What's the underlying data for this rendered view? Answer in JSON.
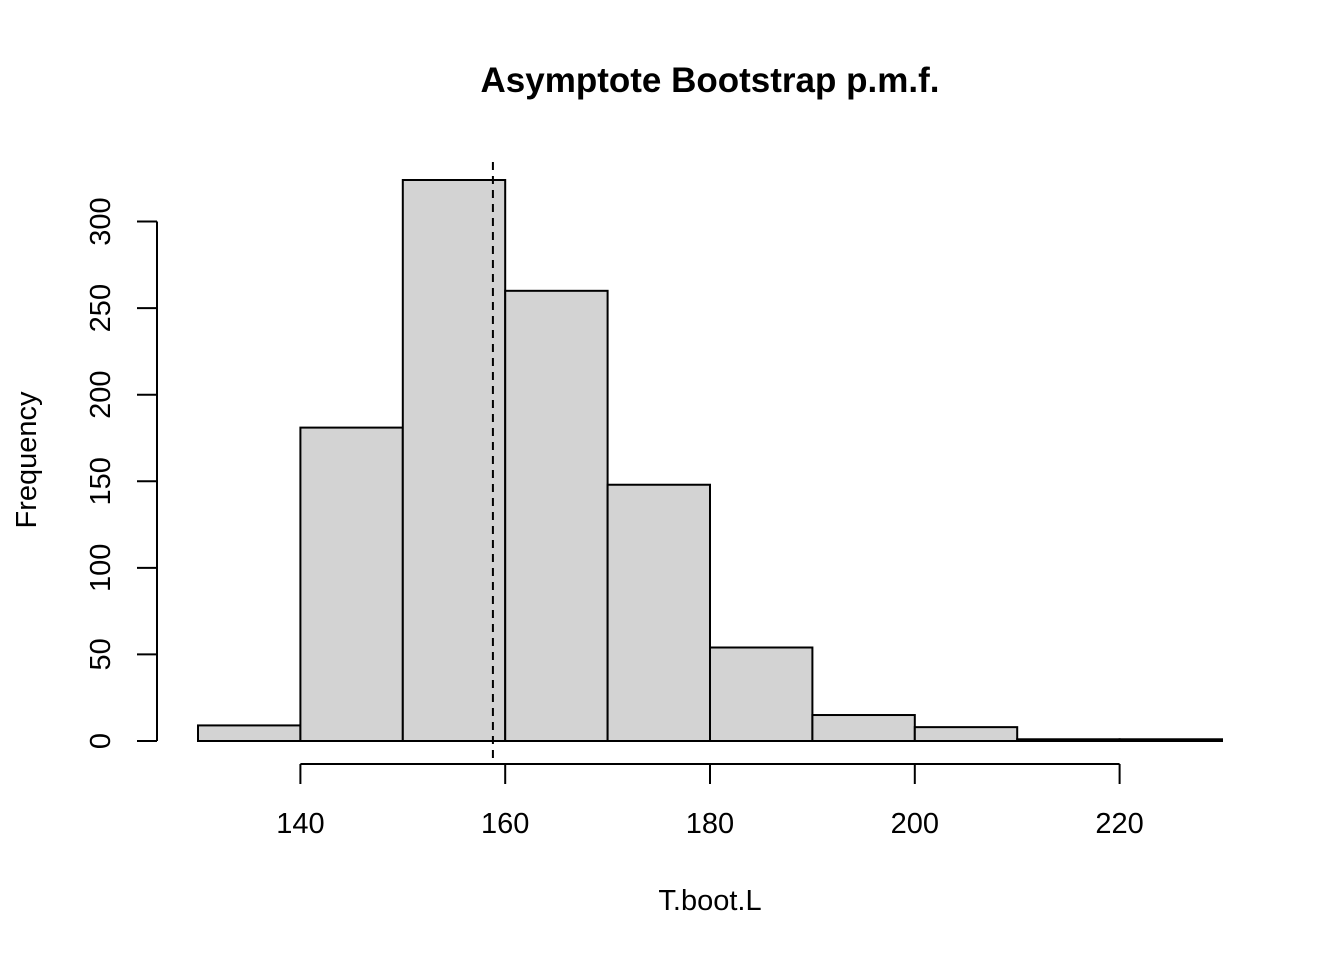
{
  "chart_data": {
    "type": "bar",
    "title": "Asymptote Bootstrap p.m.f.",
    "xlabel": "T.boot.L",
    "ylabel": "Frequency",
    "bins": [
      {
        "x0": 130,
        "x1": 140,
        "count": 9
      },
      {
        "x0": 140,
        "x1": 150,
        "count": 181
      },
      {
        "x0": 150,
        "x1": 160,
        "count": 324
      },
      {
        "x0": 160,
        "x1": 170,
        "count": 260
      },
      {
        "x0": 170,
        "x1": 180,
        "count": 148
      },
      {
        "x0": 180,
        "x1": 190,
        "count": 54
      },
      {
        "x0": 190,
        "x1": 200,
        "count": 15
      },
      {
        "x0": 200,
        "x1": 210,
        "count": 8
      },
      {
        "x0": 210,
        "x1": 220,
        "count": 1
      },
      {
        "x0": 220,
        "x1": 230,
        "count": 1
      }
    ],
    "xlim": [
      130,
      230
    ],
    "ylim": [
      0,
      324
    ],
    "xticks": [
      140,
      160,
      180,
      200,
      220
    ],
    "yticks": [
      0,
      50,
      100,
      150,
      200,
      250,
      300
    ],
    "reference_line": {
      "x": 158.8,
      "style": "dashed"
    },
    "grid": false,
    "legend": "none"
  }
}
